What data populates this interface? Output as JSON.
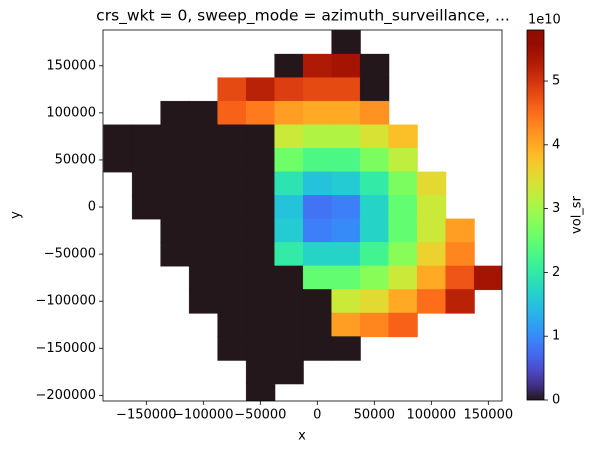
{
  "chart_data": {
    "type": "heatmap",
    "title": "crs_wkt = 0, sweep_mode = azimuth_surveillance, ...",
    "xlabel": "x",
    "ylabel": "y",
    "colorbar_label": "vol_sr",
    "colorbar_offset": "1e10",
    "colormap": "turbo",
    "x": [
      -175000,
      -150000,
      -125000,
      -100000,
      -75000,
      -50000,
      -25000,
      0,
      25000,
      50000,
      75000,
      100000,
      125000,
      150000
    ],
    "y": [
      175000,
      150000,
      125000,
      100000,
      75000,
      50000,
      25000,
      0,
      -25000,
      -50000,
      -75000,
      -100000,
      -125000,
      -150000,
      -175000,
      -200000
    ],
    "values": [
      [
        null,
        null,
        null,
        null,
        null,
        null,
        null,
        null,
        0,
        null,
        null,
        null,
        null,
        null
      ],
      [
        null,
        null,
        null,
        null,
        null,
        null,
        0,
        5.3,
        5.4,
        0,
        null,
        null,
        null,
        null
      ],
      [
        null,
        null,
        null,
        null,
        4.8,
        5.2,
        4.9,
        4.8,
        4.8,
        0,
        null,
        null,
        null,
        null
      ],
      [
        null,
        null,
        0,
        0,
        4.6,
        4.4,
        4.1,
        4.0,
        4.0,
        4.2,
        null,
        null,
        null,
        null
      ],
      [
        0,
        0,
        0,
        0,
        0,
        0,
        3.3,
        3.1,
        3.1,
        3.4,
        3.8,
        null,
        null,
        null
      ],
      [
        0,
        0,
        0,
        0,
        0,
        0,
        2.6,
        2.3,
        2.3,
        2.7,
        3.2,
        null,
        null,
        null
      ],
      [
        null,
        0,
        0,
        0,
        0,
        0,
        1.9,
        1.5,
        1.6,
        2.0,
        2.7,
        3.5,
        null,
        null
      ],
      [
        null,
        0,
        0,
        0,
        0,
        0,
        1.5,
        0.8,
        0.9,
        1.7,
        2.5,
        3.3,
        null,
        null
      ],
      [
        null,
        null,
        0,
        0,
        0,
        0,
        1.6,
        0.9,
        1.0,
        1.7,
        2.5,
        3.3,
        4.1,
        null
      ],
      [
        null,
        null,
        0,
        0,
        0,
        0,
        2.0,
        1.7,
        1.7,
        2.2,
        2.8,
        3.6,
        4.3,
        null
      ],
      [
        null,
        null,
        null,
        0,
        0,
        0,
        0,
        2.5,
        2.5,
        2.8,
        3.3,
        4.0,
        4.7,
        5.4
      ],
      [
        null,
        null,
        null,
        0,
        0,
        0,
        0,
        0,
        3.3,
        3.5,
        4.0,
        4.5,
        5.2,
        null
      ],
      [
        null,
        null,
        null,
        null,
        0,
        0,
        0,
        0,
        4.1,
        4.3,
        4.6,
        null,
        null,
        null
      ],
      [
        null,
        null,
        null,
        null,
        0,
        0,
        0,
        0,
        0,
        null,
        null,
        null,
        null,
        null
      ],
      [
        null,
        null,
        null,
        null,
        null,
        0,
        0,
        null,
        null,
        null,
        null,
        null,
        null,
        null
      ],
      [
        null,
        null,
        null,
        null,
        null,
        0,
        null,
        null,
        null,
        null,
        null,
        null,
        null,
        null
      ]
    ],
    "xlim": [
      -188000,
      162000
    ],
    "xticks": [
      {
        "value": -150000,
        "label": "−150000"
      },
      {
        "value": -100000,
        "label": "−100000"
      },
      {
        "value": -50000,
        "label": "−50000"
      },
      0,
      50000,
      100000,
      150000
    ],
    "ylim": [
      -206000,
      188000
    ],
    "yticks": [
      {
        "value": -200000,
        "label": "−200000"
      },
      {
        "value": -150000,
        "label": "−150000"
      },
      {
        "value": -100000,
        "label": "−100000"
      },
      {
        "value": -50000,
        "label": "−50000"
      },
      0,
      50000,
      100000,
      150000
    ],
    "clim": [
      0,
      5.8
    ],
    "cticks": [
      0,
      1,
      2,
      3,
      4,
      5
    ]
  }
}
